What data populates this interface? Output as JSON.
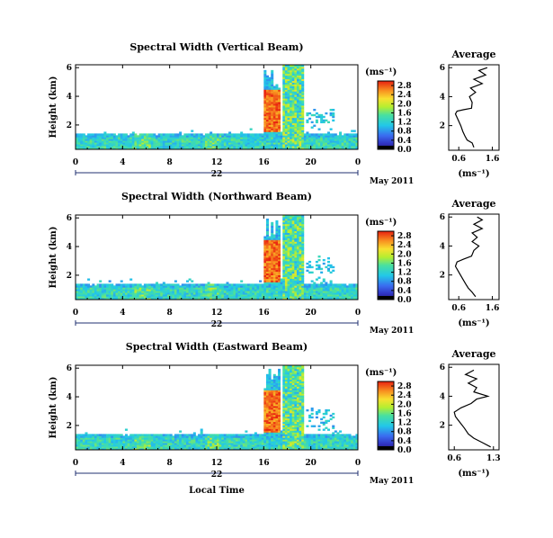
{
  "figure": {
    "xlabel": "Local Time",
    "ylabel": "Height (km)",
    "colorbar_label": "(ms⁻¹)",
    "avg_title": "Average",
    "avg_xlabel": "(ms⁻¹)",
    "date_day": "22",
    "date_label": "May 2011"
  },
  "chart_data": [
    {
      "type": "heatmap",
      "title": "Spectral Width (Vertical Beam)",
      "xlabel": "Local Time",
      "ylabel": "Height (km)",
      "x_ticks": [
        "0",
        "4",
        "8",
        "12",
        "16",
        "20",
        "0"
      ],
      "xlim": [
        0,
        24
      ],
      "y_ticks": [
        "2",
        "4",
        "6"
      ],
      "ylim": [
        0.3,
        6.2
      ],
      "colorbar_ticks": [
        "0.0",
        "0.4",
        "0.8",
        "1.2",
        "1.6",
        "2.0",
        "2.4",
        "2.8"
      ],
      "colorbar_range": [
        0,
        3.0
      ],
      "average": {
        "title": "Average",
        "x_ticks": [
          "0.6",
          "1.6"
        ],
        "xlim": [
          0.3,
          1.8
        ],
        "y_ticks": [
          "2",
          "4",
          "6"
        ],
        "profile": [
          [
            1.05,
            0.5
          ],
          [
            1.0,
            0.8
          ],
          [
            0.85,
            1.0
          ],
          [
            0.78,
            1.3
          ],
          [
            0.72,
            1.6
          ],
          [
            0.66,
            2.0
          ],
          [
            0.58,
            2.4
          ],
          [
            0.5,
            2.8
          ],
          [
            0.55,
            3.0
          ],
          [
            0.75,
            3.1
          ],
          [
            0.98,
            3.2
          ],
          [
            1.0,
            3.6
          ],
          [
            0.92,
            4.0
          ],
          [
            1.1,
            4.3
          ],
          [
            0.95,
            4.6
          ],
          [
            1.3,
            4.9
          ],
          [
            1.05,
            5.2
          ],
          [
            1.4,
            5.5
          ],
          [
            1.2,
            5.8
          ],
          [
            1.45,
            6.0
          ]
        ]
      }
    },
    {
      "type": "heatmap",
      "title": "Spectral Width (Northward Beam)",
      "xlabel": "Local Time",
      "ylabel": "Height (km)",
      "x_ticks": [
        "0",
        "4",
        "8",
        "12",
        "16",
        "20",
        "0"
      ],
      "xlim": [
        0,
        24
      ],
      "y_ticks": [
        "2",
        "4",
        "6"
      ],
      "ylim": [
        0.3,
        6.2
      ],
      "colorbar_ticks": [
        "0.0",
        "0.4",
        "0.8",
        "1.2",
        "1.6",
        "2.0",
        "2.4",
        "2.8"
      ],
      "colorbar_range": [
        0,
        3.0
      ],
      "average": {
        "title": "Average",
        "x_ticks": [
          "0.6",
          "1.6"
        ],
        "xlim": [
          0.3,
          1.8
        ],
        "y_ticks": [
          "2",
          "4",
          "6"
        ],
        "profile": [
          [
            1.1,
            0.5
          ],
          [
            1.0,
            0.8
          ],
          [
            0.88,
            1.1
          ],
          [
            0.8,
            1.4
          ],
          [
            0.7,
            1.8
          ],
          [
            0.6,
            2.2
          ],
          [
            0.5,
            2.6
          ],
          [
            0.55,
            2.9
          ],
          [
            0.75,
            3.1
          ],
          [
            0.98,
            3.3
          ],
          [
            1.05,
            3.7
          ],
          [
            1.2,
            4.0
          ],
          [
            1.0,
            4.3
          ],
          [
            1.15,
            4.6
          ],
          [
            1.0,
            4.9
          ],
          [
            1.3,
            5.2
          ],
          [
            1.05,
            5.5
          ],
          [
            1.3,
            5.8
          ],
          [
            1.15,
            6.0
          ]
        ]
      }
    },
    {
      "type": "heatmap",
      "title": "Spectral Width (Eastward Beam)",
      "xlabel": "Local Time",
      "ylabel": "Height (km)",
      "x_ticks": [
        "0",
        "4",
        "8",
        "12",
        "16",
        "20",
        "0"
      ],
      "xlim": [
        0,
        24
      ],
      "y_ticks": [
        "2",
        "4",
        "6"
      ],
      "ylim": [
        0.3,
        6.2
      ],
      "colorbar_ticks": [
        "0.0",
        "0.4",
        "0.8",
        "1.2",
        "1.6",
        "2.0",
        "2.4",
        "2.8"
      ],
      "colorbar_range": [
        0,
        3.0
      ],
      "average": {
        "title": "Average",
        "x_ticks": [
          "0.6",
          "1.3"
        ],
        "xlim": [
          0.5,
          1.4
        ],
        "y_ticks": [
          "2",
          "4",
          "6"
        ],
        "profile": [
          [
            1.25,
            0.5
          ],
          [
            1.1,
            0.8
          ],
          [
            0.95,
            1.1
          ],
          [
            0.85,
            1.4
          ],
          [
            0.78,
            1.8
          ],
          [
            0.7,
            2.2
          ],
          [
            0.62,
            2.6
          ],
          [
            0.6,
            2.9
          ],
          [
            0.72,
            3.2
          ],
          [
            0.9,
            3.5
          ],
          [
            1.0,
            3.8
          ],
          [
            1.2,
            4.0
          ],
          [
            0.95,
            4.3
          ],
          [
            1.0,
            4.6
          ],
          [
            0.85,
            4.9
          ],
          [
            1.0,
            5.2
          ],
          [
            0.8,
            5.5
          ],
          [
            0.95,
            5.8
          ]
        ]
      }
    }
  ]
}
